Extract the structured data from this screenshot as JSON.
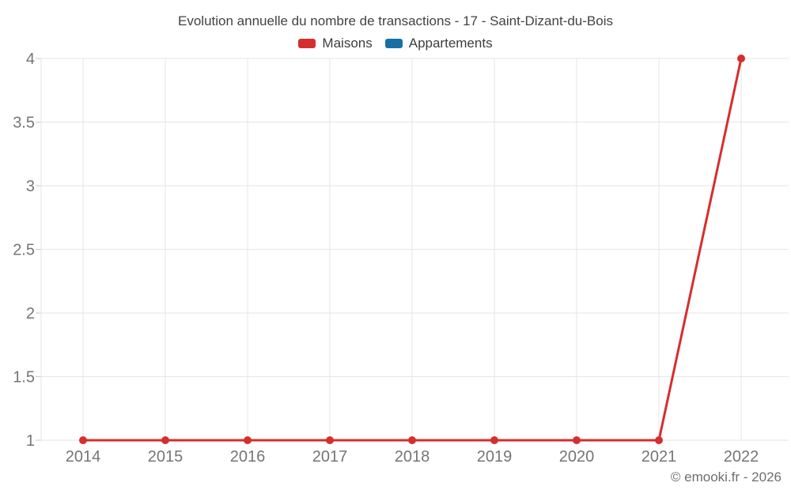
{
  "header": {
    "title": "Evolution annuelle du nombre de transactions - 17 - Saint-Dizant-du-Bois"
  },
  "footer": {
    "copyright": "© emooki.fr - 2026"
  },
  "colors": {
    "background": "#ffffff",
    "title_text": "#424242",
    "legend_text": "#3d3d3d",
    "tick_label": "#757575",
    "gridline": "#e6e6e6",
    "axis_tick": "#c9c9c9",
    "maisons_red": "#d62e2e",
    "appartements_blue": "#186fa5",
    "copyright_text": "#6e6e6e"
  },
  "chart_data": {
    "type": "line",
    "title": "Evolution annuelle du nombre de transactions - 17 - Saint-Dizant-du-Bois",
    "x": [
      2014,
      2015,
      2016,
      2017,
      2018,
      2019,
      2020,
      2021,
      2022
    ],
    "series": [
      {
        "name": "Maisons",
        "color": "#d62e2e",
        "values": [
          1,
          1,
          1,
          1,
          1,
          1,
          1,
          1,
          4
        ]
      },
      {
        "name": "Appartements",
        "color": "#186fa5",
        "values": []
      }
    ],
    "xlabel": "",
    "ylabel": "",
    "ylim": [
      1,
      4
    ],
    "yticks": [
      1,
      1.5,
      2,
      2.5,
      3,
      3.5,
      4
    ],
    "grid": true,
    "legend_position": "top"
  }
}
